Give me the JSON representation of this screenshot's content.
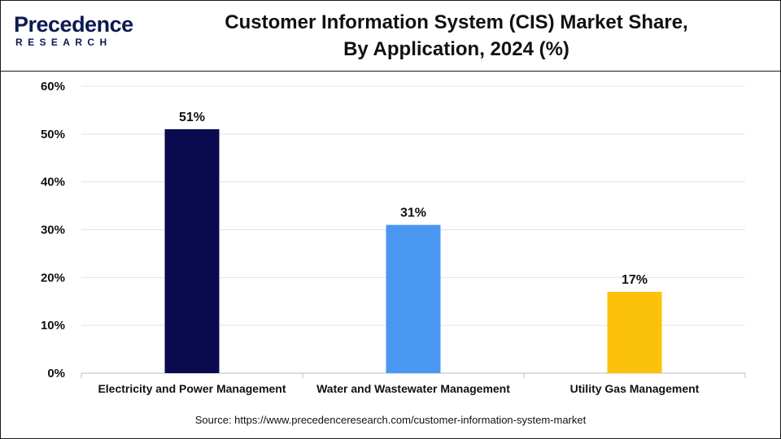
{
  "brand": {
    "logo_main": "Precedence",
    "logo_sub": "RESEARCH",
    "color": "#0b1a4f"
  },
  "title": {
    "line1": "Customer Information System (CIS) Market Share,",
    "line2": "By Application, 2024 (%)"
  },
  "source": "Source: https://www.precedenceresearch.com/customer-information-system-market",
  "chart_data": {
    "type": "bar",
    "title": "Customer Information System (CIS) Market Share, By Application, 2024 (%)",
    "categories": [
      "Electricity and Power Management",
      "Water and Wastewater Management",
      "Utility Gas Management"
    ],
    "values": [
      51,
      31,
      17
    ],
    "data_labels": [
      "51%",
      "31%",
      "17%"
    ],
    "colors": [
      "#0a0a4e",
      "#4a97f2",
      "#fcc10a"
    ],
    "ylim": [
      0,
      60
    ],
    "yticks": [
      0,
      10,
      20,
      30,
      40,
      50,
      60
    ],
    "ytick_labels": [
      "0%",
      "10%",
      "20%",
      "30%",
      "40%",
      "50%",
      "60%"
    ],
    "xlabel": "",
    "ylabel": "",
    "grid": true,
    "legend": "none"
  }
}
